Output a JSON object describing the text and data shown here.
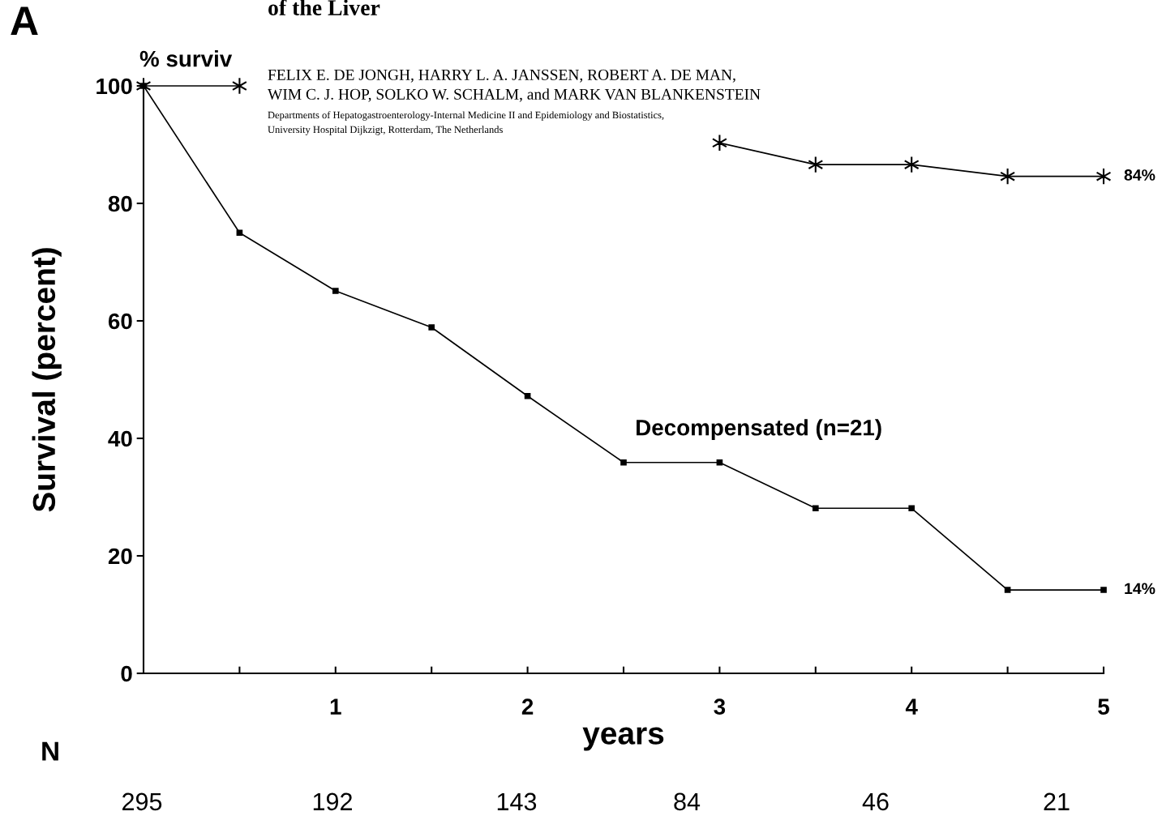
{
  "chart_data": {
    "type": "line",
    "title": "of the Liver",
    "ylabel": "Survival (percent)",
    "xlabel": "years",
    "x": [
      0,
      0.5,
      1,
      1.5,
      2,
      2.5,
      3,
      3.5,
      4,
      4.5,
      5
    ],
    "series": [
      {
        "color": "#000000",
        "marker": "cross",
        "values": [
          100,
          100,
          null,
          null,
          null,
          null,
          90.3,
          86.6,
          86.6,
          84.6,
          84.6
        ]
      },
      {
        "name": "Decompensated (n=21)",
        "color": "#000000",
        "marker": "square",
        "values": [
          100,
          75.0,
          65.1,
          58.9,
          47.2,
          35.9,
          35.9,
          28.1,
          28.1,
          14.2,
          14.2
        ]
      }
    ],
    "xlim": [
      0,
      5
    ],
    "ylim": [
      0,
      100
    ],
    "xticks": [
      {
        "value": 0.5,
        "label": null
      },
      1,
      {
        "value": 1.5,
        "label": null
      },
      2,
      {
        "value": 2.5,
        "label": null
      },
      3,
      {
        "value": 3.5,
        "label": null
      },
      4,
      {
        "value": 4.5,
        "label": null
      },
      5
    ],
    "yticks": [
      0,
      20,
      40,
      60,
      80,
      100
    ],
    "grid": false,
    "legend": false,
    "line_style": "solid",
    "annotations": [
      "A",
      "% surviv",
      "FELIX E. DE JONGH, HARRY L. A. JANSSEN, ROBERT A. DE MAN,",
      "WIM C. J. HOP, SOLKO W. SCHALM, and MARK VAN BLANKENSTEIN",
      "Departments of Hepatogastroenterology-Internal Medicine II and Epidemiology and Biostatistics,",
      "University Hospital Dijkzigt, Rotterdam, The Netherlands",
      "N",
      "295",
      "192",
      "143",
      "84",
      "46",
      "21",
      {
        "text": "84%",
        "x": 5,
        "y": 84.6
      },
      {
        "text": "14%",
        "x": 5,
        "y": 14.2
      }
    ]
  }
}
